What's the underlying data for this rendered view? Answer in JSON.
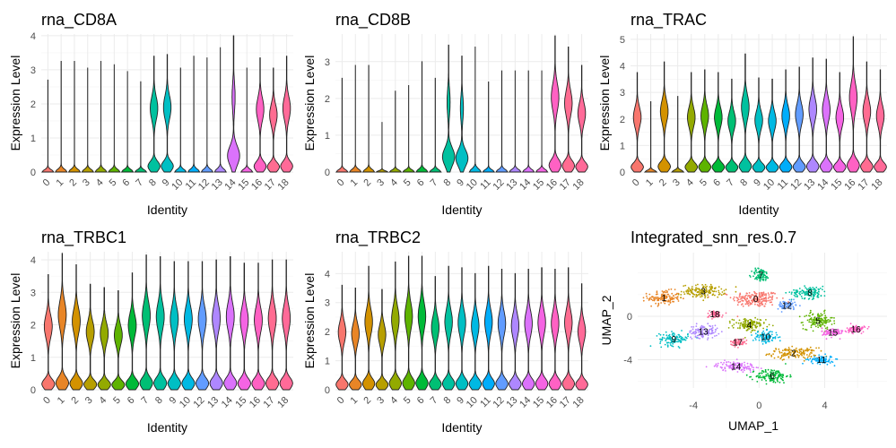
{
  "chart_data": [
    {
      "type": "violin",
      "title": "rna_CD8A",
      "xlabel": "Identity",
      "ylabel": "Expression Level",
      "categories": [
        "0",
        "1",
        "2",
        "3",
        "4",
        "5",
        "6",
        "7",
        "8",
        "9",
        "10",
        "11",
        "12",
        "13",
        "14",
        "15",
        "16",
        "17",
        "18"
      ],
      "yticks": [
        0,
        1,
        2,
        3,
        4
      ],
      "ylim": [
        0,
        4.05
      ],
      "max": [
        2.7,
        3.25,
        3.25,
        3.05,
        3.25,
        3.15,
        2.95,
        2.65,
        3.4,
        3.45,
        3.05,
        3.4,
        3.35,
        3.65,
        4.0,
        3.05,
        3.35,
        3.05,
        3.4
      ],
      "shape": [
        "z",
        "z",
        "z",
        "z",
        "z",
        "z",
        "z",
        "z",
        "bi",
        "bi",
        "z",
        "z",
        "z",
        "z",
        "bl",
        "z",
        "bi",
        "bi",
        "bi"
      ]
    },
    {
      "type": "violin",
      "title": "rna_CD8B",
      "xlabel": "Identity",
      "ylabel": "Expression Level",
      "categories": [
        "0",
        "1",
        "2",
        "3",
        "4",
        "5",
        "6",
        "7",
        "8",
        "9",
        "10",
        "11",
        "12",
        "13",
        "14",
        "15",
        "16",
        "17",
        "18"
      ],
      "yticks": [
        0,
        1,
        2,
        3
      ],
      "ylim": [
        0,
        3.75
      ],
      "max": [
        2.55,
        2.9,
        2.9,
        1.35,
        2.2,
        2.35,
        3.0,
        2.55,
        3.45,
        3.15,
        3.4,
        2.45,
        2.75,
        2.75,
        2.75,
        2.75,
        3.7,
        3.4,
        2.9
      ],
      "shape": [
        "z",
        "z",
        "z",
        "z",
        "z",
        "z",
        "z",
        "z",
        "bl",
        "bl",
        "z",
        "z",
        "z",
        "z",
        "z",
        "z",
        "bi",
        "bi",
        "bi"
      ]
    },
    {
      "type": "violin",
      "title": "rna_TRAC",
      "xlabel": "Identity",
      "ylabel": "Expression Level",
      "categories": [
        "0",
        "1",
        "2",
        "3",
        "4",
        "5",
        "6",
        "7",
        "8",
        "9",
        "10",
        "11",
        "12",
        "13",
        "14",
        "15",
        "16",
        "17",
        "18"
      ],
      "yticks": [
        0,
        1,
        2,
        3,
        4,
        5
      ],
      "ylim": [
        0,
        5.2
      ],
      "max": [
        3.75,
        2.65,
        4.15,
        2.85,
        3.75,
        3.85,
        3.75,
        3.5,
        4.45,
        3.55,
        3.5,
        3.85,
        3.95,
        4.3,
        4.25,
        3.75,
        5.1,
        4.15,
        3.85
      ],
      "shape": [
        "bi",
        "z",
        "bi",
        "z",
        "bi",
        "bi",
        "bi",
        "bi",
        "bi",
        "bi",
        "bi",
        "bi",
        "bi",
        "bi",
        "bi",
        "bi",
        "bi",
        "bi",
        "bi"
      ]
    },
    {
      "type": "violin",
      "title": "rna_TRBC1",
      "xlabel": "Identity",
      "ylabel": "Expression Level",
      "categories": [
        "0",
        "1",
        "2",
        "3",
        "4",
        "5",
        "6",
        "7",
        "8",
        "9",
        "10",
        "12",
        "13",
        "14",
        "15",
        "16",
        "17",
        "18"
      ],
      "yticks": [
        0,
        1,
        2,
        3,
        4
      ],
      "ylim": [
        0,
        4.25
      ],
      "max": [
        3.55,
        4.2,
        3.85,
        3.25,
        3.15,
        3.05,
        3.6,
        4.15,
        4.1,
        3.95,
        3.95,
        3.95,
        4.0,
        4.1,
        3.9,
        3.9,
        4.0,
        4.0
      ],
      "shape": [
        "bi",
        "bi",
        "bi",
        "bi",
        "bi",
        "bi",
        "bi",
        "bi",
        "bi",
        "bi",
        "bi",
        "bi",
        "bi",
        "bi",
        "bi",
        "bi",
        "bi",
        "bi"
      ]
    },
    {
      "type": "violin",
      "title": "rna_TRBC2",
      "xlabel": "Identity",
      "ylabel": "Expression Level",
      "categories": [
        "0",
        "1",
        "2",
        "3",
        "4",
        "5",
        "6",
        "7",
        "8",
        "9",
        "10",
        "11",
        "12",
        "13",
        "14",
        "15",
        "16",
        "17",
        "18"
      ],
      "yticks": [
        0,
        1,
        2,
        3,
        4
      ],
      "ylim": [
        0,
        4.75
      ],
      "max": [
        3.6,
        3.5,
        4.25,
        3.45,
        4.4,
        4.6,
        4.6,
        3.9,
        4.25,
        4.2,
        4.0,
        4.25,
        4.15,
        4.0,
        4.15,
        4.2,
        4.15,
        4.2,
        3.65
      ],
      "shape": [
        "bi",
        "bi",
        "bi",
        "bi",
        "bi",
        "bi",
        "bi",
        "bi",
        "bi",
        "bi",
        "bi",
        "bi",
        "bi",
        "bi",
        "bi",
        "bi",
        "bi",
        "bi",
        "bi"
      ]
    },
    {
      "type": "scatter",
      "title": "Integrated_snn_res.0.7",
      "xlabel": "UMAP_1",
      "ylabel": "UMAP_2",
      "xticks": [
        -4,
        0,
        4
      ],
      "yticks": [
        -4,
        0
      ],
      "xlim": [
        -7.4,
        7.8
      ],
      "ylim": [
        -6.6,
        5.2
      ],
      "clusters": [
        {
          "label": "0",
          "x": -0.2,
          "y": 1.6,
          "sx": 1.3,
          "sy": 0.7
        },
        {
          "label": "1",
          "x": -5.8,
          "y": 1.7,
          "sx": 0.9,
          "sy": 0.6
        },
        {
          "label": "2",
          "x": 2.1,
          "y": -3.4,
          "sx": 1.3,
          "sy": 0.45
        },
        {
          "label": "3",
          "x": -3.4,
          "y": 2.3,
          "sx": 1.2,
          "sy": 0.55
        },
        {
          "label": "4",
          "x": -0.6,
          "y": -0.8,
          "sx": 0.9,
          "sy": 0.55
        },
        {
          "label": "5",
          "x": 3.6,
          "y": -0.4,
          "sx": 0.8,
          "sy": 0.7
        },
        {
          "label": "6",
          "x": 0.8,
          "y": -5.5,
          "sx": 0.9,
          "sy": 0.6
        },
        {
          "label": "7",
          "x": 0.1,
          "y": 3.8,
          "sx": 0.5,
          "sy": 0.55
        },
        {
          "label": "8",
          "x": 3.1,
          "y": 2.2,
          "sx": 1.0,
          "sy": 0.5
        },
        {
          "label": "9",
          "x": -5.2,
          "y": -2.1,
          "sx": 0.8,
          "sy": 0.55
        },
        {
          "label": "10",
          "x": 0.4,
          "y": -1.9,
          "sx": 0.7,
          "sy": 0.5
        },
        {
          "label": "11",
          "x": 3.8,
          "y": -4.0,
          "sx": 0.7,
          "sy": 0.35
        },
        {
          "label": "12",
          "x": 1.7,
          "y": 1.0,
          "sx": 0.5,
          "sy": 0.4
        },
        {
          "label": "13",
          "x": -3.4,
          "y": -1.4,
          "sx": 0.8,
          "sy": 0.55
        },
        {
          "label": "14",
          "x": -1.4,
          "y": -4.6,
          "sx": 1.1,
          "sy": 0.4
        },
        {
          "label": "15",
          "x": 4.5,
          "y": -1.5,
          "sx": 0.6,
          "sy": 0.4
        },
        {
          "label": "16",
          "x": 5.9,
          "y": -1.2,
          "sx": 0.5,
          "sy": 0.35
        },
        {
          "label": "17",
          "x": -1.3,
          "y": -2.4,
          "sx": 0.4,
          "sy": 0.3
        },
        {
          "label": "18",
          "x": -2.7,
          "y": 0.2,
          "sx": 0.45,
          "sy": 0.3
        }
      ]
    }
  ],
  "palette": [
    "#F8766D",
    "#E88526",
    "#D39200",
    "#B79F00",
    "#93AA00",
    "#5EB300",
    "#00BA38",
    "#00BF74",
    "#00C19F",
    "#00BFC4",
    "#00B9E3",
    "#00ADFA",
    "#619CFF",
    "#AE87FF",
    "#DB72FB",
    "#F564E3",
    "#FF61C3",
    "#FF6C91",
    "#FF6A98"
  ]
}
